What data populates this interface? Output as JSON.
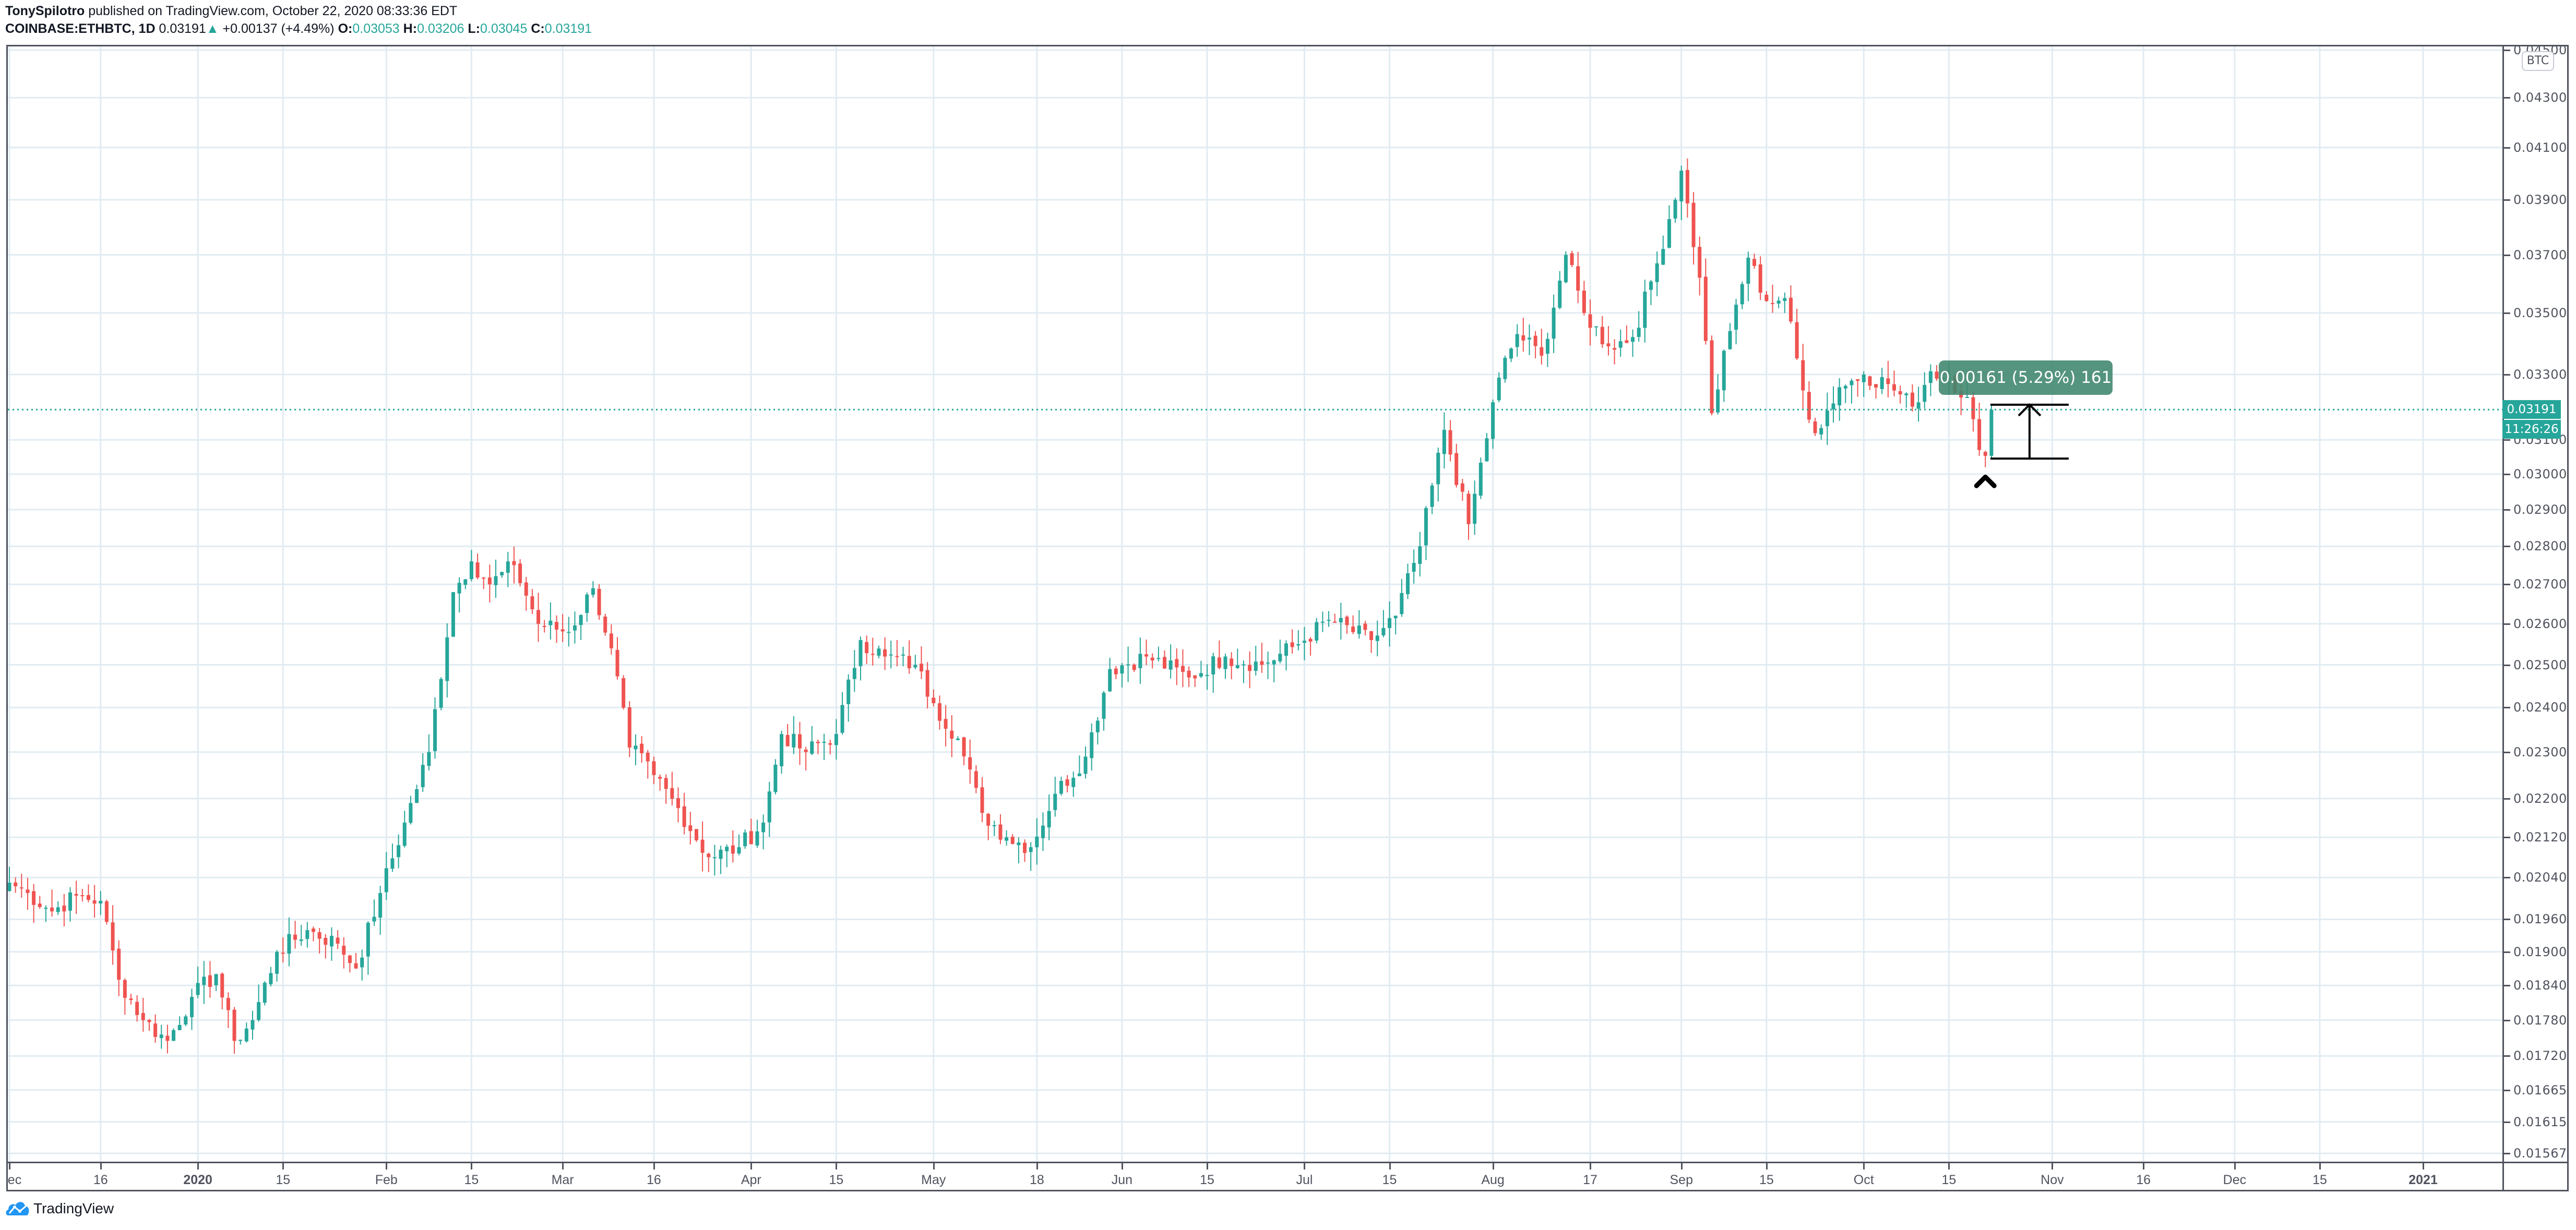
{
  "header": {
    "author": "TonySpilotro",
    "published_text": "published on TradingView.com, October 22, 2020 08:33:36 EDT",
    "symbol": "COINBASE:ETHBTC, 1D",
    "last_price": "0.03191",
    "change_arrow": "▲",
    "change": "+0.00137 (+4.49%)",
    "open_label": "O:",
    "open": "0.03053",
    "high_label": "H:",
    "high": "0.03206",
    "low_label": "L:",
    "low": "0.03045",
    "close_label": "C:",
    "close": "0.03191"
  },
  "colors": {
    "up": "#26a69a",
    "down": "#ef5350",
    "grid": "#e1ecf2",
    "axis": "#50535e",
    "measure_bg": "#40876e",
    "brand": "#2196f3"
  },
  "price_axis": {
    "currency_badge": "BTC",
    "labels": [
      "0.04500",
      "0.04300",
      "0.04100",
      "0.03900",
      "0.03700",
      "0.03500",
      "0.03300",
      "0.03100",
      "0.03000",
      "0.02900",
      "0.02800",
      "0.02700",
      "0.02600",
      "0.02500",
      "0.02400",
      "0.02300",
      "0.02200",
      "0.02120",
      "0.02040",
      "0.01960",
      "0.01900",
      "0.01840",
      "0.01780",
      "0.01720",
      "0.01665",
      "0.01615",
      "0.01567"
    ],
    "current_price_tag": "0.03191",
    "countdown_tag": "11:26:26"
  },
  "time_axis": {
    "labels": [
      {
        "text": "ec",
        "day": 0
      },
      {
        "text": "16",
        "day": 15
      },
      {
        "text": "2020",
        "day": 31
      },
      {
        "text": "15",
        "day": 45
      },
      {
        "text": "Feb",
        "day": 62
      },
      {
        "text": "15",
        "day": 76
      },
      {
        "text": "Mar",
        "day": 91
      },
      {
        "text": "16",
        "day": 106
      },
      {
        "text": "Apr",
        "day": 122
      },
      {
        "text": "15",
        "day": 136
      },
      {
        "text": "May",
        "day": 152
      },
      {
        "text": "18",
        "day": 169
      },
      {
        "text": "Jun",
        "day": 183
      },
      {
        "text": "15",
        "day": 197
      },
      {
        "text": "Jul",
        "day": 213
      },
      {
        "text": "15",
        "day": 227
      },
      {
        "text": "Aug",
        "day": 244
      },
      {
        "text": "17",
        "day": 260
      },
      {
        "text": "Sep",
        "day": 275
      },
      {
        "text": "15",
        "day": 289
      },
      {
        "text": "Oct",
        "day": 305
      },
      {
        "text": "15",
        "day": 319
      },
      {
        "text": "Nov",
        "day": 336
      },
      {
        "text": "16",
        "day": 351
      },
      {
        "text": "Dec",
        "day": 366
      },
      {
        "text": "15",
        "day": 380
      },
      {
        "text": "2021",
        "day": 397
      }
    ]
  },
  "measure_tool": {
    "label": "0.00161 (5.29%) 161",
    "from_price": 0.03045,
    "to_price": 0.03206
  },
  "footer": {
    "brand": "TradingView"
  },
  "chart_data": {
    "type": "candlestick",
    "title": "COINBASE:ETHBTC, 1D",
    "xlabel": "",
    "ylabel": "BTC",
    "y_scale": "log",
    "ylim": [
      0.0155,
      0.0455
    ],
    "x_range": [
      "2019-12-01",
      "2021-01-10"
    ],
    "grid": true,
    "last": {
      "date": "2020-10-22",
      "open": 0.03053,
      "high": 0.03206,
      "low": 0.03045,
      "close": 0.03191,
      "change": 0.00137,
      "change_pct": 4.49
    },
    "close_waypoints": [
      {
        "date": "2019-12-01",
        "close": 0.0203
      },
      {
        "date": "2019-12-04",
        "close": 0.0201
      },
      {
        "date": "2019-12-08",
        "close": 0.01975
      },
      {
        "date": "2019-12-12",
        "close": 0.02005
      },
      {
        "date": "2019-12-16",
        "close": 0.01995
      },
      {
        "date": "2019-12-19",
        "close": 0.0185
      },
      {
        "date": "2019-12-23",
        "close": 0.0178
      },
      {
        "date": "2019-12-27",
        "close": 0.01745
      },
      {
        "date": "2019-12-31",
        "close": 0.0182
      },
      {
        "date": "2020-01-04",
        "close": 0.0186
      },
      {
        "date": "2020-01-07",
        "close": 0.01745
      },
      {
        "date": "2020-01-10",
        "close": 0.0178
      },
      {
        "date": "2020-01-14",
        "close": 0.019
      },
      {
        "date": "2020-01-19",
        "close": 0.0194
      },
      {
        "date": "2020-01-24",
        "close": 0.01915
      },
      {
        "date": "2020-01-27",
        "close": 0.0187
      },
      {
        "date": "2020-01-31",
        "close": 0.0201
      },
      {
        "date": "2020-02-04",
        "close": 0.0215
      },
      {
        "date": "2020-02-08",
        "close": 0.023
      },
      {
        "date": "2020-02-12",
        "close": 0.0268
      },
      {
        "date": "2020-02-15",
        "close": 0.0276
      },
      {
        "date": "2020-02-18",
        "close": 0.027
      },
      {
        "date": "2020-02-22",
        "close": 0.0275
      },
      {
        "date": "2020-02-26",
        "close": 0.026
      },
      {
        "date": "2020-03-02",
        "close": 0.0258
      },
      {
        "date": "2020-03-06",
        "close": 0.0269
      },
      {
        "date": "2020-03-09",
        "close": 0.0254
      },
      {
        "date": "2020-03-12",
        "close": 0.0231
      },
      {
        "date": "2020-03-16",
        "close": 0.0225
      },
      {
        "date": "2020-03-20",
        "close": 0.0218
      },
      {
        "date": "2020-03-25",
        "close": 0.0208
      },
      {
        "date": "2020-03-30",
        "close": 0.021
      },
      {
        "date": "2020-04-03",
        "close": 0.0215
      },
      {
        "date": "2020-04-06",
        "close": 0.0234
      },
      {
        "date": "2020-04-10",
        "close": 0.023
      },
      {
        "date": "2020-04-15",
        "close": 0.0234
      },
      {
        "date": "2020-04-19",
        "close": 0.0256
      },
      {
        "date": "2020-04-23",
        "close": 0.0252
      },
      {
        "date": "2020-04-28",
        "close": 0.025
      },
      {
        "date": "2020-05-01",
        "close": 0.0241
      },
      {
        "date": "2020-05-05",
        "close": 0.0233
      },
      {
        "date": "2020-05-09",
        "close": 0.0217
      },
      {
        "date": "2020-05-13",
        "close": 0.0212
      },
      {
        "date": "2020-05-17",
        "close": 0.021
      },
      {
        "date": "2020-05-21",
        "close": 0.0221
      },
      {
        "date": "2020-05-26",
        "close": 0.0229
      },
      {
        "date": "2020-05-30",
        "close": 0.0249
      },
      {
        "date": "2020-06-05",
        "close": 0.0252
      },
      {
        "date": "2020-06-12",
        "close": 0.0247
      },
      {
        "date": "2020-06-18",
        "close": 0.0252
      },
      {
        "date": "2020-06-24",
        "close": 0.025
      },
      {
        "date": "2020-06-30",
        "close": 0.0255
      },
      {
        "date": "2020-07-05",
        "close": 0.0261
      },
      {
        "date": "2020-07-12",
        "close": 0.0256
      },
      {
        "date": "2020-07-16",
        "close": 0.0262
      },
      {
        "date": "2020-07-20",
        "close": 0.028
      },
      {
        "date": "2020-07-24",
        "close": 0.0313
      },
      {
        "date": "2020-07-28",
        "close": 0.0286
      },
      {
        "date": "2020-08-02",
        "close": 0.0329
      },
      {
        "date": "2020-08-05",
        "close": 0.0343
      },
      {
        "date": "2020-08-09",
        "close": 0.0336
      },
      {
        "date": "2020-08-13",
        "close": 0.037
      },
      {
        "date": "2020-08-16",
        "close": 0.035
      },
      {
        "date": "2020-08-20",
        "close": 0.0339
      },
      {
        "date": "2020-08-24",
        "close": 0.0342
      },
      {
        "date": "2020-08-28",
        "close": 0.0367
      },
      {
        "date": "2020-09-01",
        "close": 0.0401
      },
      {
        "date": "2020-09-04",
        "close": 0.0362
      },
      {
        "date": "2020-09-06",
        "close": 0.0318
      },
      {
        "date": "2020-09-09",
        "close": 0.0344
      },
      {
        "date": "2020-09-12",
        "close": 0.0369
      },
      {
        "date": "2020-09-15",
        "close": 0.0354
      },
      {
        "date": "2020-09-18",
        "close": 0.0355
      },
      {
        "date": "2020-09-21",
        "close": 0.0325
      },
      {
        "date": "2020-09-23",
        "close": 0.0312
      },
      {
        "date": "2020-09-27",
        "close": 0.0326
      },
      {
        "date": "2020-10-01",
        "close": 0.033
      },
      {
        "date": "2020-10-05",
        "close": 0.0327
      },
      {
        "date": "2020-10-09",
        "close": 0.032
      },
      {
        "date": "2020-10-12",
        "close": 0.0331
      },
      {
        "date": "2020-10-15",
        "close": 0.0329
      },
      {
        "date": "2020-10-18",
        "close": 0.0323
      },
      {
        "date": "2020-10-20",
        "close": 0.0307
      },
      {
        "date": "2020-10-21",
        "close": 0.03053
      },
      {
        "date": "2020-10-22",
        "close": 0.03191
      }
    ]
  }
}
